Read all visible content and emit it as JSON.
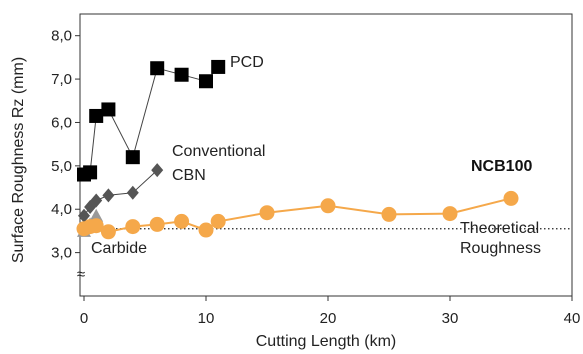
{
  "chart_data": {
    "type": "line",
    "xlabel": "Cutting Length (km)",
    "ylabel": "Surface Roughness  Rz (mm)",
    "xlim": [
      0,
      40
    ],
    "ylim": [
      2.0,
      8.5
    ],
    "x_ticks": [
      0,
      10,
      20,
      30,
      40
    ],
    "y_ticks": [
      3.0,
      4.0,
      5.0,
      6.0,
      7.0,
      8.0
    ],
    "x_tick_labels": [
      "0",
      "10",
      "20",
      "30",
      "40"
    ],
    "y_tick_labels": [
      "3,0",
      "4,0",
      "5,0",
      "6,0",
      "7,0",
      "8,0"
    ],
    "axis_break_symbol": "≈",
    "grid": false,
    "series": [
      {
        "name": "PCD",
        "color": "#000000",
        "marker": "square",
        "points": [
          [
            0,
            4.8
          ],
          [
            0.5,
            4.85
          ],
          [
            1,
            6.15
          ],
          [
            2,
            6.3
          ],
          [
            4,
            5.2
          ],
          [
            6,
            7.25
          ],
          [
            8,
            7.1
          ],
          [
            10,
            6.95
          ],
          [
            11,
            7.28
          ]
        ]
      },
      {
        "name": "Conventional CBN",
        "color": "#555555",
        "marker": "diamond",
        "points": [
          [
            0,
            3.85
          ],
          [
            0.5,
            4.05
          ],
          [
            1,
            4.2
          ],
          [
            2,
            4.32
          ],
          [
            4,
            4.38
          ],
          [
            6,
            4.9
          ]
        ]
      },
      {
        "name": "Carbide",
        "color": "#999999",
        "marker": "triangle",
        "points": [
          [
            0,
            3.5
          ],
          [
            0.5,
            3.65
          ],
          [
            1,
            3.85
          ]
        ]
      },
      {
        "name": "NCB100",
        "color": "#f5a84a",
        "marker": "circle",
        "points": [
          [
            0,
            3.55
          ],
          [
            0.5,
            3.6
          ],
          [
            1,
            3.62
          ],
          [
            2,
            3.48
          ],
          [
            4,
            3.6
          ],
          [
            6,
            3.65
          ],
          [
            8,
            3.72
          ],
          [
            10,
            3.52
          ],
          [
            11,
            3.72
          ],
          [
            15,
            3.92
          ],
          [
            20,
            4.08
          ],
          [
            25,
            3.88
          ],
          [
            30,
            3.9
          ],
          [
            35,
            4.25
          ]
        ]
      }
    ],
    "reference_line": {
      "label": "Theoretical Roughness",
      "y": 3.55,
      "style": "dotted"
    },
    "annotations": {
      "pcd": "PCD",
      "cbn_line1": "Conventional",
      "cbn_line2": "CBN",
      "ncb": "NCB100",
      "carbide": "Carbide",
      "theo_line1": "Theoretical",
      "theo_line2": "Roughness"
    }
  }
}
